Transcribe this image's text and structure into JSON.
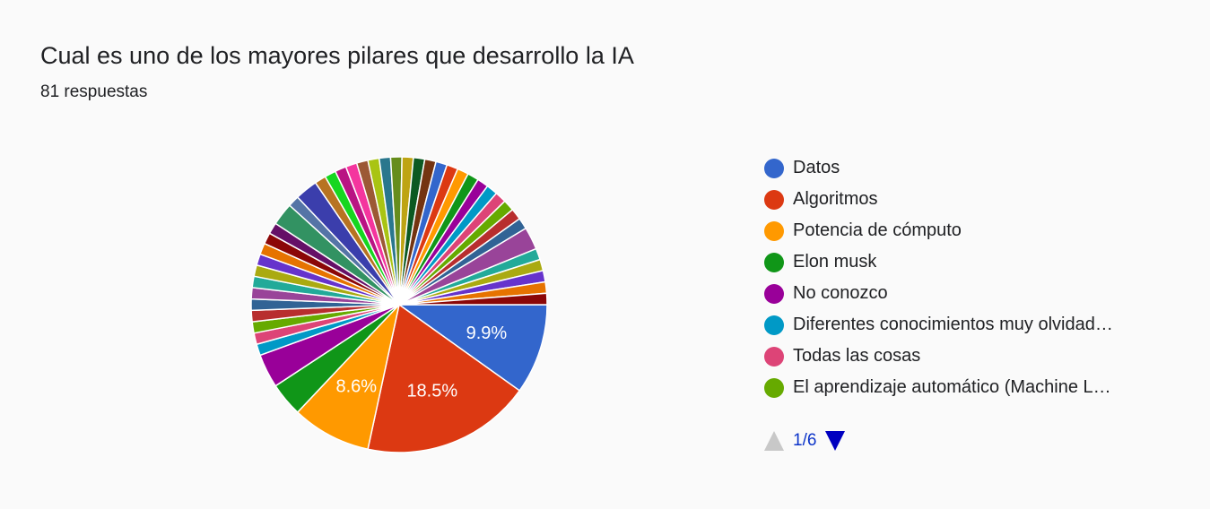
{
  "header": {
    "title": "Cual es uno de los mayores pilares que desarrollo la IA",
    "subtitle": "81 respuestas"
  },
  "pager": {
    "text": "1/6"
  },
  "chart_data": {
    "type": "pie",
    "total_responses": 81,
    "slices": [
      {
        "label": "Datos",
        "count": 8,
        "color": "#3366cc",
        "label_text": "9.9%"
      },
      {
        "label": "Algoritmos",
        "count": 15,
        "color": "#dc3912",
        "label_text": "18.5%"
      },
      {
        "label": "Potencia de cómputo",
        "count": 7,
        "color": "#ff9900",
        "label_text": "8.6%"
      },
      {
        "label": "Elon musk",
        "count": 3,
        "color": "#109618"
      },
      {
        "label": "No conozco",
        "count": 3,
        "color": "#990099"
      },
      {
        "label": "Diferentes conocimientos muy olvidad…",
        "count": 1,
        "color": "#0099c6"
      },
      {
        "label": "Todas las cosas",
        "count": 1,
        "color": "#dd4477"
      },
      {
        "label": "El aprendizaje automático (Machine L…",
        "count": 1,
        "color": "#66aa00"
      },
      {
        "count": 1,
        "color": "#b82e2e"
      },
      {
        "count": 1,
        "color": "#316395"
      },
      {
        "count": 1,
        "color": "#994499"
      },
      {
        "count": 1,
        "color": "#22aa99"
      },
      {
        "count": 1,
        "color": "#aaaa11"
      },
      {
        "count": 1,
        "color": "#6633cc"
      },
      {
        "count": 1,
        "color": "#e67300"
      },
      {
        "count": 1,
        "color": "#8b0707"
      },
      {
        "count": 1,
        "color": "#651067"
      },
      {
        "count": 2,
        "color": "#329262"
      },
      {
        "count": 1,
        "color": "#5574a6"
      },
      {
        "count": 2,
        "color": "#3b3eac"
      },
      {
        "count": 1,
        "color": "#b77322"
      },
      {
        "count": 1,
        "color": "#16d620"
      },
      {
        "count": 1,
        "color": "#b91383"
      },
      {
        "count": 1,
        "color": "#f4359e"
      },
      {
        "count": 1,
        "color": "#9c5935"
      },
      {
        "count": 1,
        "color": "#a9c413"
      },
      {
        "count": 1,
        "color": "#2a778d"
      },
      {
        "count": 1,
        "color": "#668d1c"
      },
      {
        "count": 1,
        "color": "#bea413"
      },
      {
        "count": 1,
        "color": "#0c5922"
      },
      {
        "count": 1,
        "color": "#743411"
      },
      {
        "count": 1,
        "color": "#3366cc"
      },
      {
        "count": 1,
        "color": "#dc3912"
      },
      {
        "count": 1,
        "color": "#ff9900"
      },
      {
        "count": 1,
        "color": "#109618"
      },
      {
        "count": 1,
        "color": "#990099"
      },
      {
        "count": 1,
        "color": "#0099c6"
      },
      {
        "count": 1,
        "color": "#dd4477"
      },
      {
        "count": 1,
        "color": "#66aa00"
      },
      {
        "count": 1,
        "color": "#b82e2e"
      },
      {
        "count": 1,
        "color": "#316395"
      },
      {
        "count": 2,
        "color": "#994499"
      },
      {
        "count": 1,
        "color": "#22aa99"
      },
      {
        "count": 1,
        "color": "#aaaa11"
      },
      {
        "count": 1,
        "color": "#6633cc"
      },
      {
        "count": 1,
        "color": "#e67300"
      },
      {
        "count": 1,
        "color": "#8b0707"
      }
    ]
  }
}
